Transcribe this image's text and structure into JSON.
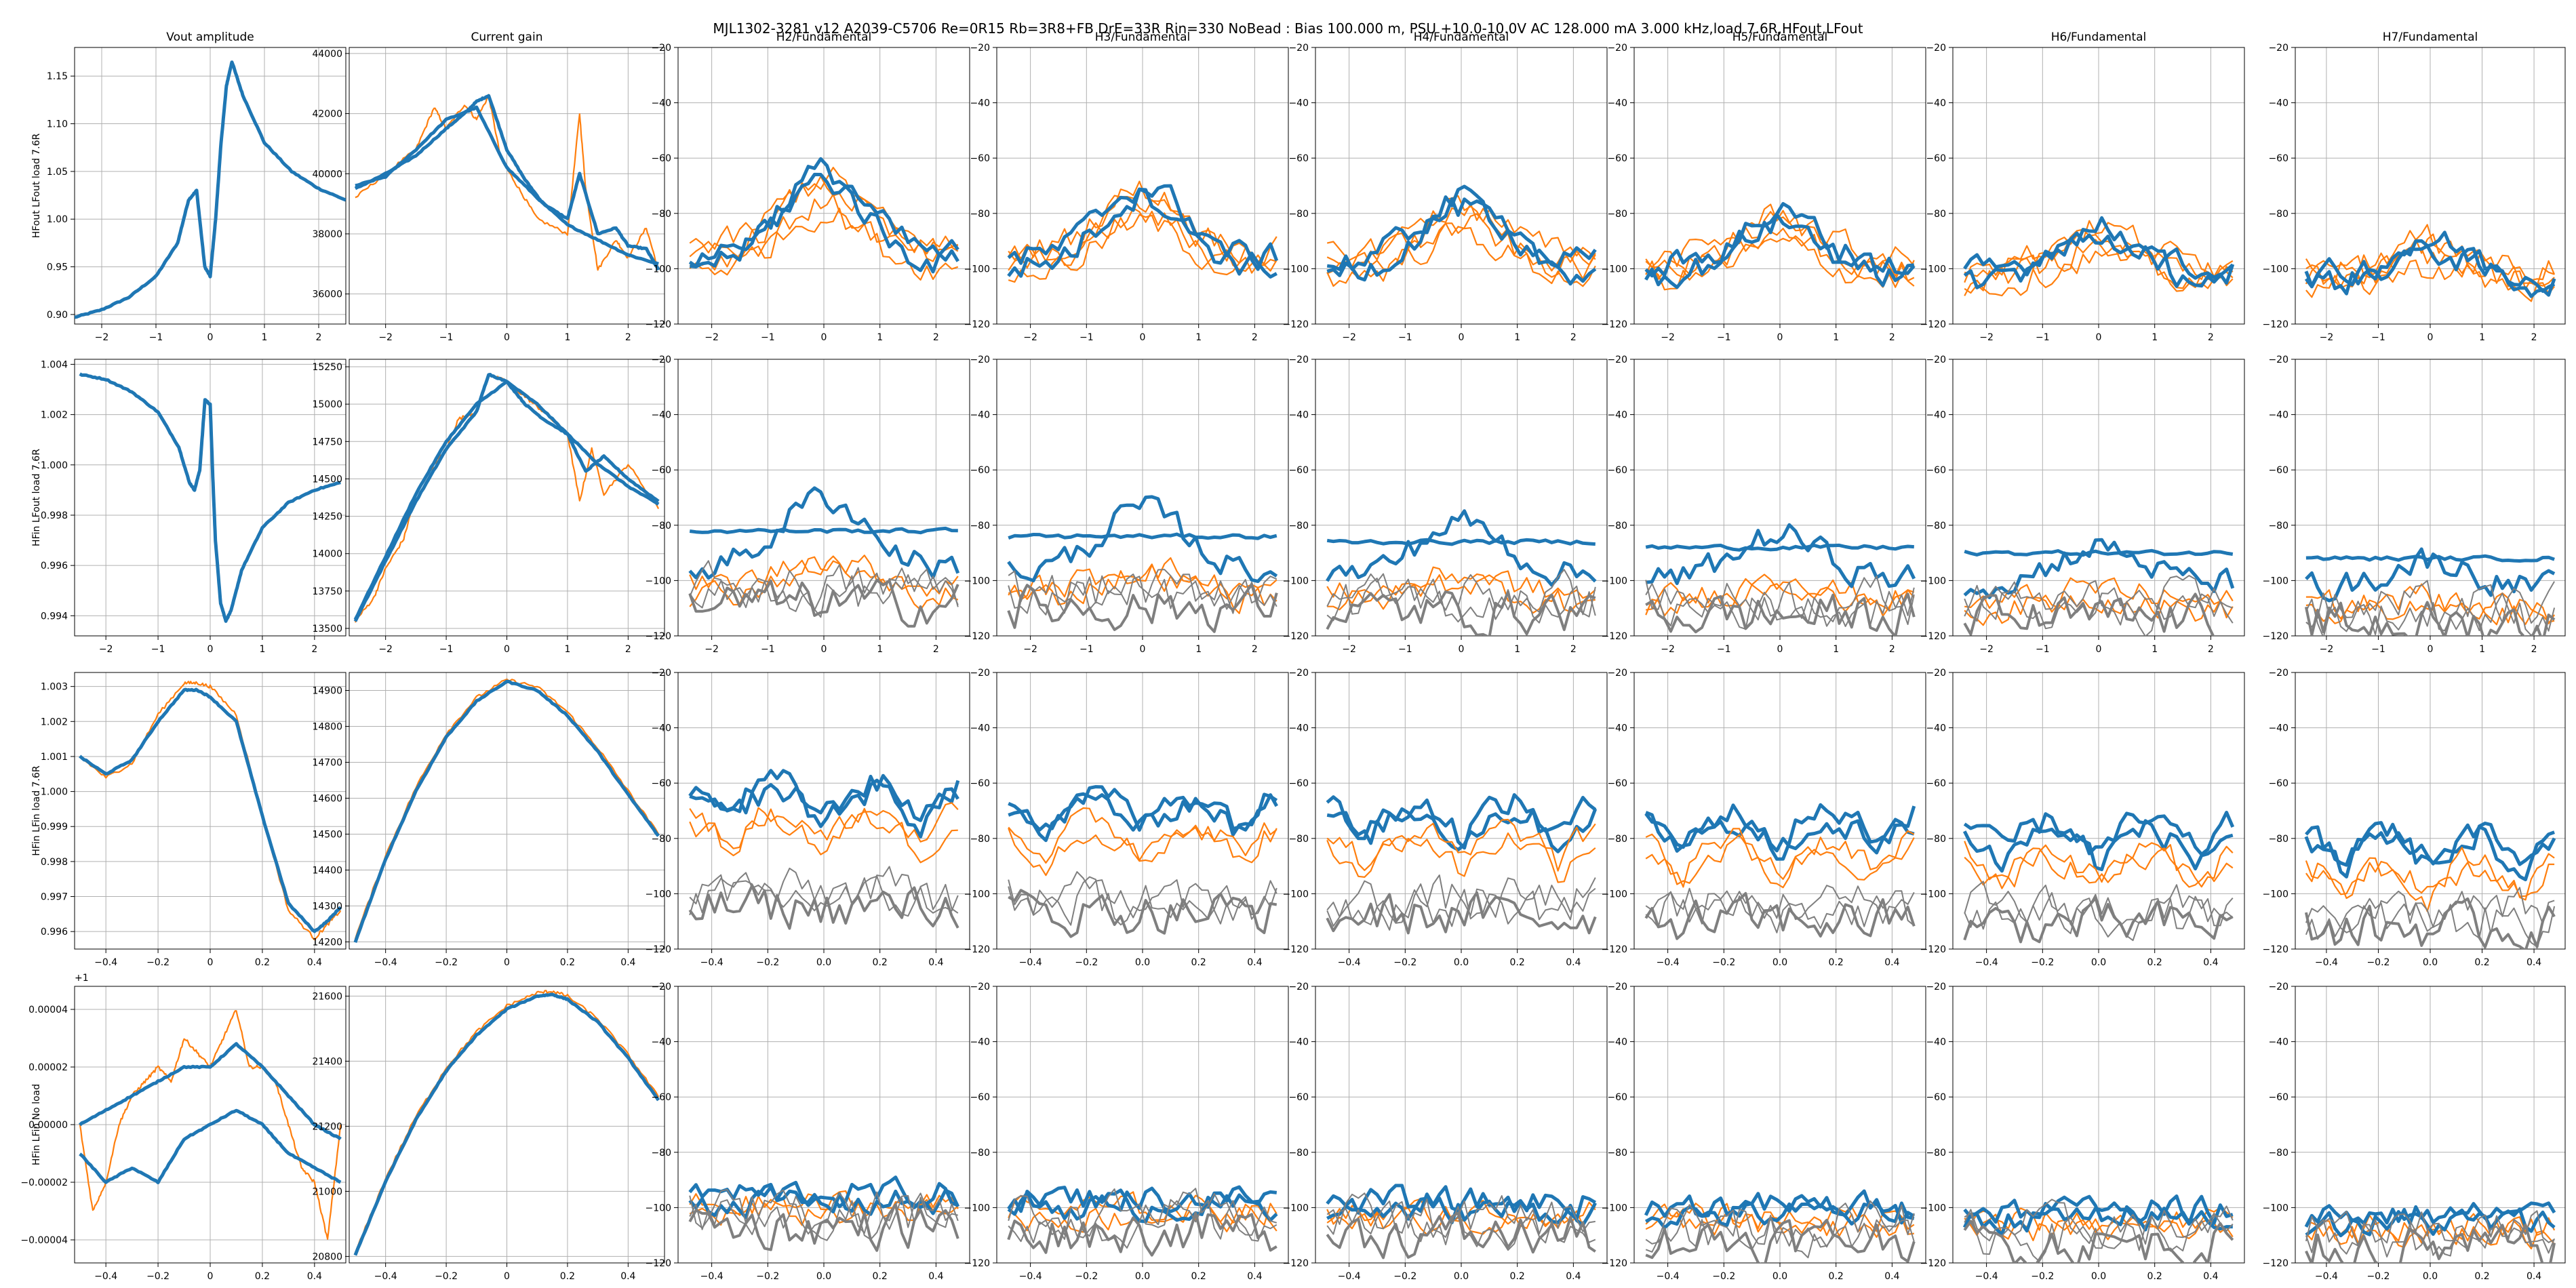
{
  "figure": {
    "suptitle": "MJL1302-3281 v12 A2039-C5706 Re=0R15 Rb=3R8+FB DrE=33R Rin=330 NoBead : Bias 100.000 m, PSU +10.0-10.0V AC 128.000 mA 3.000 kHz,load 7.6R,HFout,LFout"
  },
  "colors": {
    "blue": "#1f77b4",
    "orange": "#ff7f0e",
    "gray": "#7f7f7f",
    "grid": "#b0b0b0"
  },
  "column_titles": [
    "Vout amplitude",
    "Current gain",
    "H2/Fundamental",
    "H3/Fundamental",
    "H4/Fundamental",
    "H5/Fundamental",
    "H6/Fundamental",
    "H7/Fundamental"
  ],
  "row_labels": [
    "HFout LFout load 7.6R",
    "HFin LFout load 7.6R",
    "HFin LFin load 7.6R",
    "HFin LFin No load"
  ],
  "chart_data": {
    "type": "line",
    "layout": "4 rows x 8 columns grid",
    "harmonic_panels": {
      "ylim": [
        -120,
        -20
      ],
      "yticks": [
        -120,
        -100,
        -80,
        -60,
        -40,
        -20
      ],
      "xticks_rows_1_2": [
        -2,
        -1,
        0,
        1,
        2
      ],
      "xticks_rows_3_4": [
        -0.4,
        -0.2,
        0.0,
        0.2,
        0.4
      ],
      "series_colors": [
        "blue",
        "orange",
        "gray"
      ]
    },
    "panels": [
      {
        "row": 0,
        "col": 0,
        "type": "line",
        "xlim": [
          -2.5,
          2.5
        ],
        "ylim": [
          0.89,
          1.18
        ],
        "xticks": [
          -2,
          -1,
          0,
          1,
          2
        ],
        "yticks": [
          0.9,
          0.95,
          1.0,
          1.05,
          1.1,
          1.15
        ],
        "ytick_labels": [
          "0.90",
          "0.95",
          "1.00",
          "1.05",
          "1.10",
          "1.15"
        ],
        "series": [
          {
            "color": "blue",
            "x": [
              -2.5,
              -2.0,
              -1.5,
              -1.0,
              -0.6,
              -0.4,
              -0.25,
              -0.1,
              0.0,
              0.1,
              0.2,
              0.3,
              0.4,
              0.6,
              1.0,
              1.5,
              2.0,
              2.5
            ],
            "y": [
              0.897,
              0.905,
              0.918,
              0.94,
              0.975,
              1.02,
              1.03,
              0.95,
              0.94,
              1.0,
              1.08,
              1.14,
              1.165,
              1.13,
              1.08,
              1.05,
              1.032,
              1.02
            ]
          }
        ]
      },
      {
        "row": 0,
        "col": 1,
        "type": "line",
        "xlim": [
          -2.6,
          2.6
        ],
        "ylim": [
          35000,
          44200
        ],
        "xticks": [
          -2,
          -1,
          0,
          1,
          2
        ],
        "yticks": [
          36000,
          38000,
          40000,
          42000,
          44000
        ],
        "ytick_labels": [
          "36000",
          "38000",
          "40000",
          "42000",
          "44000"
        ],
        "series": [
          {
            "color": "orange",
            "x": [
              -2.5,
              -2.0,
              -1.5,
              -1.2,
              -1.0,
              -0.7,
              -0.5,
              -0.3,
              -0.1,
              0.2,
              0.5,
              1.0,
              1.2,
              1.3,
              1.5,
              1.8,
              2.0,
              2.3,
              2.5
            ],
            "y": [
              39200,
              40000,
              40800,
              42200,
              41500,
              42300,
              41800,
              42600,
              40500,
              39500,
              38500,
              38000,
              42000,
              39500,
              36800,
              37800,
              37200,
              38200,
              36800
            ]
          },
          {
            "color": "blue",
            "x": [
              -2.5,
              -2.0,
              -1.5,
              -1.0,
              -0.7,
              -0.5,
              -0.3,
              0.0,
              0.3,
              0.6,
              1.0,
              1.2,
              1.5,
              1.8,
              2.0,
              2.3,
              2.5
            ],
            "y": [
              39500,
              40000,
              40600,
              41500,
              42000,
              42400,
              42600,
              40800,
              39800,
              39000,
              38500,
              40000,
              38000,
              38200,
              37600,
              37500,
              36800
            ]
          },
          {
            "color": "blue",
            "x": [
              -2.5,
              -2.0,
              -1.5,
              -1.0,
              -0.5,
              0.0,
              0.5,
              1.0,
              1.5,
              2.0,
              2.5
            ],
            "y": [
              39600,
              39900,
              40800,
              41800,
              42200,
              40200,
              39200,
              38300,
              37800,
              37300,
              37000
            ]
          }
        ]
      },
      {
        "row": 1,
        "col": 0,
        "type": "line",
        "xlim": [
          -2.6,
          2.6
        ],
        "ylim": [
          0.9932,
          1.0042
        ],
        "xticks": [
          -2,
          -1,
          0,
          1,
          2
        ],
        "yticks": [
          0.994,
          0.996,
          0.998,
          1.0,
          1.002,
          1.004
        ],
        "ytick_labels": [
          "0.994",
          "0.996",
          "0.998",
          "1.000",
          "1.002",
          "1.004"
        ],
        "series": [
          {
            "color": "blue",
            "x": [
              -2.5,
              -2.0,
              -1.5,
              -1.0,
              -0.6,
              -0.4,
              -0.3,
              -0.2,
              -0.1,
              0.0,
              0.05,
              0.1,
              0.2,
              0.3,
              0.4,
              0.6,
              1.0,
              1.5,
              2.0,
              2.5
            ],
            "y": [
              1.0036,
              1.0034,
              1.0029,
              1.0021,
              1.0007,
              0.9993,
              0.999,
              0.9998,
              1.0026,
              1.0024,
              0.9995,
              0.997,
              0.9945,
              0.9938,
              0.9942,
              0.9958,
              0.9975,
              0.9985,
              0.999,
              0.9993
            ]
          }
        ]
      },
      {
        "row": 1,
        "col": 1,
        "type": "line",
        "xlim": [
          -2.6,
          2.6
        ],
        "ylim": [
          13450,
          15300
        ],
        "xticks": [
          -2,
          -1,
          0,
          1,
          2
        ],
        "yticks": [
          13500,
          13750,
          14000,
          14250,
          14500,
          14750,
          15000,
          15250
        ],
        "ytick_labels": [
          "13500",
          "13750",
          "14000",
          "14250",
          "14500",
          "14750",
          "15000",
          "15250"
        ],
        "series": [
          {
            "color": "orange",
            "x": [
              -2.5,
              -2.2,
              -2.0,
              -1.7,
              -1.5,
              -1.2,
              -1.0,
              -0.8,
              -0.5,
              -0.3,
              0.0,
              0.3,
              0.6,
              1.0,
              1.2,
              1.4,
              1.6,
              2.0,
              2.5
            ],
            "y": [
              13550,
              13700,
              13900,
              14100,
              14400,
              14600,
              14700,
              14900,
              14950,
              15200,
              15150,
              15050,
              14950,
              14800,
              14350,
              14700,
              14400,
              14600,
              14300
            ]
          },
          {
            "color": "blue",
            "x": [
              -2.5,
              -2.0,
              -1.5,
              -1.0,
              -0.5,
              -0.3,
              0.0,
              0.3,
              0.6,
              1.0,
              1.3,
              1.6,
              2.0,
              2.5
            ],
            "y": [
              13550,
              13950,
              14350,
              14700,
              14950,
              15200,
              15150,
              15000,
              14900,
              14800,
              14550,
              14650,
              14500,
              14350
            ]
          },
          {
            "color": "blue",
            "x": [
              -2.5,
              -2.0,
              -1.5,
              -1.0,
              -0.5,
              0.0,
              0.5,
              1.0,
              1.5,
              2.0,
              2.5
            ],
            "y": [
              13560,
              13980,
              14400,
              14750,
              15000,
              15150,
              15000,
              14800,
              14600,
              14450,
              14330
            ]
          }
        ]
      },
      {
        "row": 2,
        "col": 0,
        "type": "line",
        "xlim": [
          -0.52,
          0.52
        ],
        "ylim": [
          0.9955,
          1.0034
        ],
        "xticks": [
          -0.4,
          -0.2,
          0.0,
          0.2,
          0.4
        ],
        "yticks": [
          0.996,
          0.997,
          0.998,
          0.999,
          1.0,
          1.001,
          1.002,
          1.003
        ],
        "ytick_labels": [
          "0.996",
          "0.997",
          "0.998",
          "0.999",
          "1.000",
          "1.001",
          "1.002",
          "1.003"
        ],
        "series": [
          {
            "color": "orange",
            "x": [
              -0.5,
              -0.4,
              -0.3,
              -0.2,
              -0.1,
              -0.05,
              0.0,
              0.1,
              0.2,
              0.3,
              0.4,
              0.45,
              0.5
            ],
            "y": [
              1.001,
              1.0004,
              1.0008,
              1.0022,
              1.0031,
              1.0031,
              1.003,
              1.0022,
              0.9993,
              0.9966,
              0.9958,
              0.9962,
              0.9966
            ]
          },
          {
            "color": "blue",
            "x": [
              -0.5,
              -0.4,
              -0.3,
              -0.2,
              -0.1,
              -0.05,
              0.0,
              0.1,
              0.2,
              0.3,
              0.4,
              0.45,
              0.5
            ],
            "y": [
              1.001,
              1.0005,
              1.0009,
              1.002,
              1.0029,
              1.0029,
              1.0027,
              1.002,
              0.9993,
              0.9968,
              0.996,
              0.9963,
              0.9967
            ]
          }
        ]
      },
      {
        "row": 2,
        "col": 1,
        "type": "line",
        "xlim": [
          -0.52,
          0.52
        ],
        "ylim": [
          14180,
          14950
        ],
        "xticks": [
          -0.4,
          -0.2,
          0.0,
          0.2,
          0.4
        ],
        "yticks": [
          14200,
          14300,
          14400,
          14500,
          14600,
          14700,
          14800,
          14900
        ],
        "ytick_labels": [
          "14200",
          "14300",
          "14400",
          "14500",
          "14600",
          "14700",
          "14800",
          "14900"
        ],
        "series": [
          {
            "color": "orange",
            "x": [
              -0.5,
              -0.4,
              -0.3,
              -0.2,
              -0.1,
              0.0,
              0.1,
              0.2,
              0.3,
              0.4,
              0.5
            ],
            "y": [
              14210,
              14440,
              14630,
              14780,
              14880,
              14930,
              14910,
              14840,
              14740,
              14620,
              14500
            ]
          },
          {
            "color": "blue",
            "x": [
              -0.5,
              -0.4,
              -0.3,
              -0.2,
              -0.1,
              0.0,
              0.1,
              0.2,
              0.3,
              0.4,
              0.5
            ],
            "y": [
              14200,
              14430,
              14620,
              14770,
              14870,
              14925,
              14900,
              14830,
              14730,
              14610,
              14495
            ]
          }
        ]
      },
      {
        "row": 3,
        "col": 0,
        "type": "line",
        "offset_label": "+1",
        "xlim": [
          -0.52,
          0.52
        ],
        "ylim": [
          -4.8e-05,
          4.8e-05
        ],
        "xticks": [
          -0.4,
          -0.2,
          0.0,
          0.2,
          0.4
        ],
        "yticks": [
          -4e-05,
          -2e-05,
          0.0,
          2e-05,
          4e-05
        ],
        "ytick_labels": [
          "−0.00004",
          "−0.00002",
          "0.00000",
          "0.00002",
          "0.00004"
        ],
        "series": [
          {
            "color": "orange",
            "x": [
              -0.5,
              -0.45,
              -0.4,
              -0.35,
              -0.3,
              -0.25,
              -0.2,
              -0.15,
              -0.1,
              -0.05,
              0.0,
              0.05,
              0.1,
              0.15,
              0.2,
              0.25,
              0.3,
              0.35,
              0.4,
              0.45,
              0.5
            ],
            "y": [
              0.0,
              -3e-05,
              -2e-05,
              0.0,
              1e-05,
              1.5e-05,
              2e-05,
              1.5e-05,
              3e-05,
              2.5e-05,
              2e-05,
              3e-05,
              4e-05,
              2e-05,
              2e-05,
              1.5e-05,
              0.0,
              -1.5e-05,
              -2e-05,
              -4e-05,
              0.0
            ]
          },
          {
            "color": "blue",
            "x": [
              -0.5,
              -0.4,
              -0.3,
              -0.2,
              -0.1,
              0.0,
              0.1,
              0.2,
              0.3,
              0.4,
              0.5
            ],
            "y": [
              0.0,
              5e-06,
              1e-05,
              1.5e-05,
              2e-05,
              2e-05,
              2.8e-05,
              2e-05,
              1e-05,
              0.0,
              -5e-06
            ]
          },
          {
            "color": "blue",
            "x": [
              -0.5,
              -0.4,
              -0.3,
              -0.2,
              -0.1,
              0.0,
              0.1,
              0.2,
              0.3,
              0.4,
              0.5
            ],
            "y": [
              -1e-05,
              -2e-05,
              -1.5e-05,
              -2e-05,
              -5e-06,
              0.0,
              5e-06,
              0.0,
              -1e-05,
              -1.5e-05,
              -2e-05
            ]
          }
        ]
      },
      {
        "row": 3,
        "col": 1,
        "type": "line",
        "xlim": [
          -0.52,
          0.52
        ],
        "ylim": [
          20780,
          21630
        ],
        "xticks": [
          -0.4,
          -0.2,
          0.0,
          0.2,
          0.4
        ],
        "yticks": [
          20800,
          21000,
          21200,
          21400,
          21600
        ],
        "ytick_labels": [
          "20800",
          "21000",
          "21200",
          "21400",
          "21600"
        ],
        "series": [
          {
            "color": "orange",
            "x": [
              -0.5,
              -0.4,
              -0.3,
              -0.2,
              -0.1,
              0.0,
              0.1,
              0.15,
              0.2,
              0.3,
              0.4,
              0.5
            ],
            "y": [
              20810,
              21040,
              21230,
              21380,
              21490,
              21570,
              21610,
              21615,
              21600,
              21530,
              21420,
              21290
            ]
          },
          {
            "color": "blue",
            "x": [
              -0.5,
              -0.4,
              -0.3,
              -0.2,
              -0.1,
              0.0,
              0.1,
              0.15,
              0.2,
              0.3,
              0.4,
              0.5
            ],
            "y": [
              20805,
              21030,
              21220,
              21370,
              21480,
              21560,
              21600,
              21605,
              21590,
              21520,
              21410,
              21280
            ]
          }
        ]
      }
    ]
  }
}
